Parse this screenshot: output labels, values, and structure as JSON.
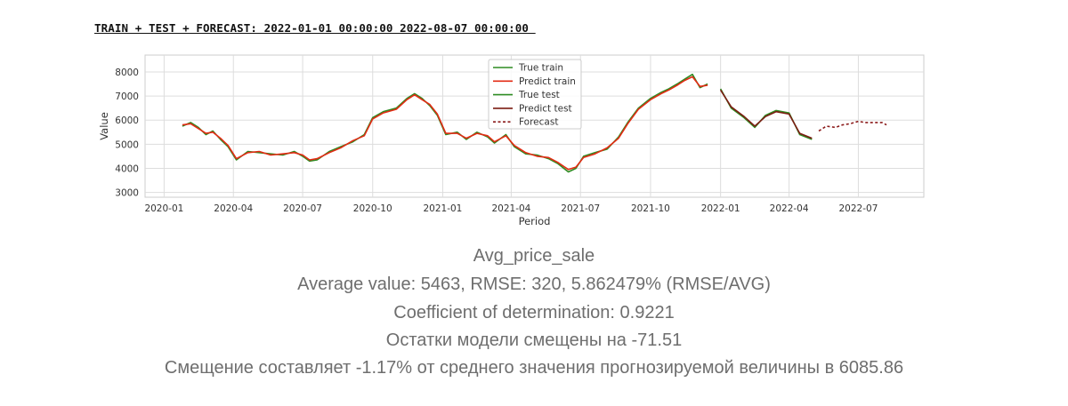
{
  "header": "TRAIN + TEST + FORECAST: 2022-01-01 00:00:00 2022-08-07 00:00:00 ",
  "chart_data": {
    "type": "line",
    "xlabel": "Period",
    "ylabel": "Value",
    "x_range": [
      "2019-12-07",
      "2022-09-25"
    ],
    "ylim": [
      2800,
      8700
    ],
    "x_ticks": [
      "2020-01",
      "2020-04",
      "2020-07",
      "2020-10",
      "2021-01",
      "2021-04",
      "2021-07",
      "2021-10",
      "2022-01",
      "2022-04",
      "2022-07"
    ],
    "y_ticks": [
      3000,
      4000,
      5000,
      6000,
      7000,
      8000
    ],
    "grid": true,
    "legend_position": "top-center",
    "series": [
      {
        "name": "True train",
        "color": "#2e8b22",
        "style": "solid",
        "x": [
          "2020-01-25",
          "2020-02-05",
          "2020-02-15",
          "2020-02-25",
          "2020-03-05",
          "2020-03-15",
          "2020-03-25",
          "2020-04-05",
          "2020-04-20",
          "2020-05-05",
          "2020-05-20",
          "2020-06-05",
          "2020-06-20",
          "2020-07-01",
          "2020-07-10",
          "2020-07-20",
          "2020-08-05",
          "2020-08-20",
          "2020-09-05",
          "2020-09-20",
          "2020-10-01",
          "2020-10-15",
          "2020-11-01",
          "2020-11-15",
          "2020-11-25",
          "2020-12-05",
          "2020-12-15",
          "2020-12-25",
          "2021-01-05",
          "2021-01-20",
          "2021-02-01",
          "2021-02-15",
          "2021-03-01",
          "2021-03-10",
          "2021-03-25",
          "2021-04-05",
          "2021-04-20",
          "2021-05-05",
          "2021-05-20",
          "2021-06-01",
          "2021-06-15",
          "2021-06-25",
          "2021-07-05",
          "2021-07-20",
          "2021-08-05",
          "2021-08-20",
          "2021-09-01",
          "2021-09-15",
          "2021-10-01",
          "2021-10-15",
          "2021-10-25",
          "2021-11-05",
          "2021-11-15",
          "2021-11-25",
          "2021-12-05",
          "2021-12-15"
        ],
        "values": [
          5750,
          5900,
          5700,
          5400,
          5550,
          5200,
          4900,
          4350,
          4700,
          4650,
          4600,
          4550,
          4700,
          4500,
          4300,
          4350,
          4700,
          4900,
          5100,
          5400,
          6100,
          6350,
          6500,
          6900,
          7100,
          6900,
          6600,
          6200,
          5400,
          5500,
          5200,
          5500,
          5300,
          5050,
          5400,
          4900,
          4600,
          4550,
          4400,
          4200,
          3850,
          4000,
          4500,
          4650,
          4800,
          5300,
          5900,
          6500,
          6900,
          7150,
          7300,
          7500,
          7700,
          7900,
          7350,
          7500
        ]
      },
      {
        "name": "Predict train",
        "color": "#e32b14",
        "style": "solid",
        "x": [
          "2020-01-25",
          "2020-02-05",
          "2020-02-15",
          "2020-02-25",
          "2020-03-05",
          "2020-03-15",
          "2020-03-25",
          "2020-04-05",
          "2020-04-20",
          "2020-05-05",
          "2020-05-20",
          "2020-06-05",
          "2020-06-20",
          "2020-07-01",
          "2020-07-10",
          "2020-07-20",
          "2020-08-05",
          "2020-08-20",
          "2020-09-05",
          "2020-09-20",
          "2020-10-01",
          "2020-10-15",
          "2020-11-01",
          "2020-11-15",
          "2020-11-25",
          "2020-12-05",
          "2020-12-15",
          "2020-12-25",
          "2021-01-05",
          "2021-01-20",
          "2021-02-01",
          "2021-02-15",
          "2021-03-01",
          "2021-03-10",
          "2021-03-25",
          "2021-04-05",
          "2021-04-20",
          "2021-05-05",
          "2021-05-20",
          "2021-06-01",
          "2021-06-15",
          "2021-06-25",
          "2021-07-05",
          "2021-07-20",
          "2021-08-05",
          "2021-08-20",
          "2021-09-01",
          "2021-09-15",
          "2021-10-01",
          "2021-10-15",
          "2021-10-25",
          "2021-11-05",
          "2021-11-15",
          "2021-11-25",
          "2021-12-05",
          "2021-12-15"
        ],
        "values": [
          5800,
          5850,
          5650,
          5450,
          5500,
          5250,
          4950,
          4400,
          4650,
          4700,
          4550,
          4600,
          4650,
          4550,
          4350,
          4400,
          4650,
          4850,
          5150,
          5350,
          6050,
          6300,
          6450,
          6850,
          7050,
          6850,
          6650,
          6250,
          5450,
          5450,
          5250,
          5450,
          5350,
          5100,
          5350,
          4950,
          4650,
          4500,
          4450,
          4250,
          3950,
          4050,
          4450,
          4600,
          4850,
          5250,
          5850,
          6450,
          6850,
          7100,
          7250,
          7450,
          7650,
          7800,
          7400,
          7450
        ]
      },
      {
        "name": "True test",
        "color": "#2e8b22",
        "style": "solid",
        "x": [
          "2022-01-01",
          "2022-01-15",
          "2022-02-01",
          "2022-02-15",
          "2022-03-01",
          "2022-03-15",
          "2022-04-01",
          "2022-04-15",
          "2022-05-01"
        ],
        "values": [
          7300,
          6500,
          6100,
          5700,
          6200,
          6400,
          6300,
          5400,
          5200
        ]
      },
      {
        "name": "Predict test",
        "color": "#7b1c12",
        "style": "solid",
        "x": [
          "2022-01-01",
          "2022-01-15",
          "2022-02-01",
          "2022-02-15",
          "2022-03-01",
          "2022-03-15",
          "2022-04-01",
          "2022-04-15",
          "2022-05-01"
        ],
        "values": [
          7250,
          6550,
          6150,
          5750,
          6150,
          6350,
          6250,
          5450,
          5250
        ]
      },
      {
        "name": "Forecast",
        "color": "#8b1a1a",
        "style": "dashed",
        "x": [
          "2022-05-10",
          "2022-05-20",
          "2022-06-01",
          "2022-06-10",
          "2022-06-20",
          "2022-07-01",
          "2022-07-10",
          "2022-07-20",
          "2022-08-01",
          "2022-08-07"
        ],
        "values": [
          5550,
          5750,
          5700,
          5800,
          5850,
          5950,
          5900,
          5900,
          5900,
          5800
        ]
      }
    ]
  },
  "stats": {
    "line1": "Avg_price_sale",
    "line2": "Average value: 5463, RMSE: 320, 5.862479% (RMSE/AVG)",
    "line3": "Coefficient of determination: 0.9221",
    "line4": "Остатки модели смещены на -71.51",
    "line5": "Смещение составляет -1.17% от среднего значения прогнозируемой величины в 6085.86"
  }
}
